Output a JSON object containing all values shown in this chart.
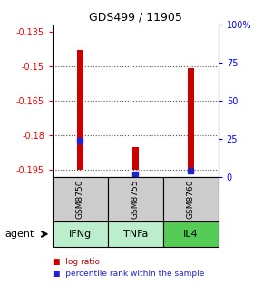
{
  "title": "GDS499 / 11905",
  "ylim_left": [
    -0.198,
    -0.132
  ],
  "ylim_right": [
    0,
    100
  ],
  "yticks_left": [
    -0.195,
    -0.18,
    -0.165,
    -0.15,
    -0.135
  ],
  "yticks_right": [
    0,
    25,
    50,
    75,
    100
  ],
  "ytick_labels_left": [
    "-0.195",
    "-0.18",
    "-0.165",
    "-0.15",
    "-0.135"
  ],
  "ytick_labels_right": [
    "0",
    "25",
    "50",
    "75",
    "100%"
  ],
  "samples": [
    "GSM8750",
    "GSM8755",
    "GSM8760"
  ],
  "agents": [
    "IFNg",
    "TNFa",
    "IL4"
  ],
  "bar_bottom": -0.195,
  "log_ratio": [
    -0.143,
    -0.185,
    -0.151
  ],
  "percentile_rank": [
    24,
    2,
    4
  ],
  "bar_color": "#cc0000",
  "pct_color": "#2222cc",
  "agent_colors": [
    "#bbeecc",
    "#bbeecc",
    "#55cc55"
  ],
  "sample_bg": "#cccccc",
  "legend_labels": [
    "log ratio",
    "percentile rank within the sample"
  ],
  "legend_colors": [
    "#cc0000",
    "#2222cc"
  ],
  "agent_label": "agent",
  "gridline_color": "#555555"
}
